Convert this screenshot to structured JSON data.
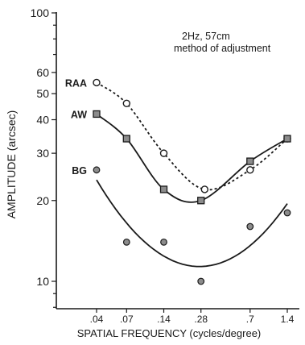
{
  "chart_data": {
    "type": "line",
    "title": "",
    "annotation": [
      "2Hz,  57cm",
      "method of adjustment"
    ],
    "xlabel": "SPATIAL FREQUENCY (cycles/degree)",
    "ylabel": "AMPLITUDE (arcsec)",
    "x_scale": "log",
    "y_scale": "log",
    "xlim": [
      0.03,
      1.6
    ],
    "ylim": [
      7.5,
      100
    ],
    "x": [
      0.04,
      0.07,
      0.14,
      0.28,
      0.7,
      1.4
    ],
    "x_tick_labels": [
      ".04",
      ".07",
      ".14",
      ".28",
      ".7",
      "1.4"
    ],
    "y_ticks": [
      10,
      20,
      30,
      40,
      50,
      60,
      100
    ],
    "y_tick_labels": [
      "10",
      "20",
      "30",
      "40",
      "50",
      "60",
      "100"
    ],
    "grid": false,
    "legend": "inline labels at left end of each series",
    "series": [
      {
        "name": "RAA",
        "marker": "open-circle",
        "line": "dotted",
        "x": [
          0.04,
          0.07,
          0.14,
          0.3,
          0.7,
          1.4
        ],
        "values": [
          55,
          46,
          30,
          22,
          26,
          34
        ]
      },
      {
        "name": "AW",
        "marker": "filled-square",
        "line": "solid",
        "x": [
          0.04,
          0.07,
          0.14,
          0.28,
          0.7,
          1.4
        ],
        "values": [
          42,
          34,
          22,
          20,
          28,
          34
        ]
      },
      {
        "name": "BG",
        "marker": "filled-circle",
        "line": "solid",
        "x": [
          0.04,
          0.07,
          0.14,
          0.28,
          0.7,
          1.4
        ],
        "values": [
          26,
          14,
          14,
          10,
          16,
          18
        ]
      }
    ]
  }
}
